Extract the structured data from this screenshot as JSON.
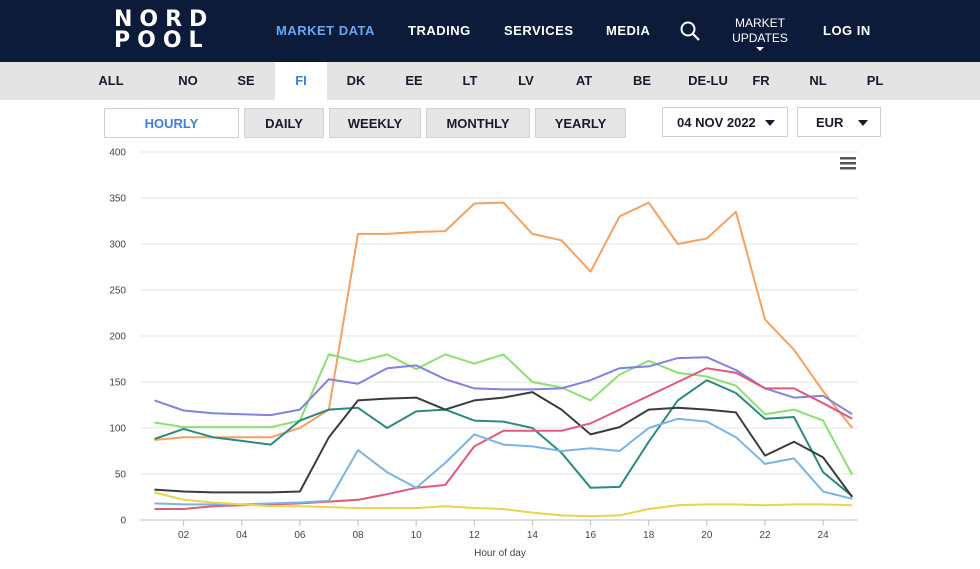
{
  "header": {
    "logo_line1": "NORD",
    "logo_line2": "POOL",
    "nav": [
      {
        "label": "MARKET DATA",
        "active": true
      },
      {
        "label": "TRADING",
        "active": false
      },
      {
        "label": "SERVICES",
        "active": false
      },
      {
        "label": "MEDIA",
        "active": false
      }
    ],
    "market_updates_line1": "MARKET",
    "market_updates_line2": "UPDATES",
    "login_label": "LOG IN",
    "icons": {
      "search": "search-icon",
      "updates": "chevron-down-icon"
    }
  },
  "areas": {
    "tabs": [
      "ALL",
      "NO",
      "SE",
      "FI",
      "DK",
      "EE",
      "LT",
      "LV",
      "AT",
      "BE",
      "DE-LU",
      "FR",
      "NL",
      "PL"
    ],
    "selected": "FI"
  },
  "resolution": {
    "buttons": [
      "HOURLY",
      "DAILY",
      "WEEKLY",
      "MONTHLY",
      "YEARLY"
    ],
    "selected": "HOURLY"
  },
  "date_select": {
    "value": "04 NOV 2022"
  },
  "currency_select": {
    "value": "EUR"
  },
  "chart_menu_icon": "hamburger-menu-icon",
  "colors": {
    "nav_bg": "#0d1b3a",
    "accent": "#3d7fd9"
  },
  "chart_data": {
    "type": "line",
    "xlabel": "Hour of day",
    "ylabel": "",
    "x": [
      1,
      2,
      3,
      4,
      5,
      6,
      7,
      8,
      9,
      10,
      11,
      12,
      13,
      14,
      15,
      16,
      17,
      18,
      19,
      20,
      21,
      22,
      23,
      24,
      25
    ],
    "xticks": [
      "02",
      "04",
      "06",
      "08",
      "10",
      "12",
      "14",
      "16",
      "18",
      "20",
      "22",
      "24"
    ],
    "xtick_values": [
      2,
      4,
      6,
      8,
      10,
      12,
      14,
      16,
      18,
      20,
      22,
      24
    ],
    "xlim": [
      0.5,
      25.2
    ],
    "ylim": [
      0,
      400
    ],
    "yticks": [
      0,
      50,
      100,
      150,
      200,
      250,
      300,
      350,
      400
    ],
    "grid": "horizontal",
    "series": [
      {
        "color": "#f4a261",
        "values": [
          87,
          90,
          90,
          90,
          90,
          100,
          120,
          311,
          311,
          313,
          314,
          344,
          345,
          311,
          304,
          270,
          330,
          345,
          300,
          306,
          335,
          218,
          185,
          140,
          100
        ]
      },
      {
        "color": "#8de070",
        "values": [
          106,
          101,
          101,
          101,
          101,
          108,
          180,
          172,
          180,
          164,
          180,
          170,
          180,
          150,
          144,
          130,
          158,
          173,
          160,
          156,
          146,
          115,
          120,
          108,
          49
        ]
      },
      {
        "color": "#8282e0",
        "values": [
          130,
          119,
          116,
          115,
          114,
          120,
          153,
          148,
          165,
          168,
          153,
          143,
          142,
          142,
          143,
          152,
          165,
          167,
          176,
          177,
          163,
          143,
          133,
          135,
          115
        ]
      },
      {
        "color": "#2b8a82",
        "values": [
          88,
          99,
          90,
          86,
          82,
          108,
          120,
          122,
          100,
          118,
          120,
          108,
          107,
          100,
          73,
          35,
          36,
          85,
          130,
          152,
          138,
          110,
          112,
          52,
          26
        ]
      },
      {
        "color": "#3c3c3c",
        "values": [
          33,
          31,
          30,
          30,
          30,
          31,
          90,
          130,
          132,
          133,
          120,
          130,
          133,
          139,
          120,
          93,
          101,
          120,
          122,
          120,
          117,
          70,
          85,
          68,
          25
        ]
      },
      {
        "color": "#e05a7a",
        "values": [
          12,
          12,
          15,
          16,
          17,
          18,
          20,
          22,
          28,
          35,
          38,
          80,
          97,
          97,
          97,
          105,
          120,
          135,
          150,
          165,
          160,
          143,
          143,
          127,
          110
        ]
      },
      {
        "color": "#79b4e6",
        "values": [
          18,
          17,
          17,
          17,
          18,
          19,
          21,
          76,
          52,
          35,
          62,
          93,
          82,
          80,
          75,
          78,
          75,
          100,
          110,
          107,
          90,
          61,
          67,
          31,
          23
        ]
      },
      {
        "color": "#e8d44d",
        "values": [
          30,
          22,
          19,
          17,
          15,
          15,
          14,
          13,
          13,
          13,
          15,
          13,
          12,
          8,
          5,
          4,
          5,
          12,
          16,
          17,
          17,
          16,
          17,
          17,
          16
        ]
      }
    ]
  }
}
